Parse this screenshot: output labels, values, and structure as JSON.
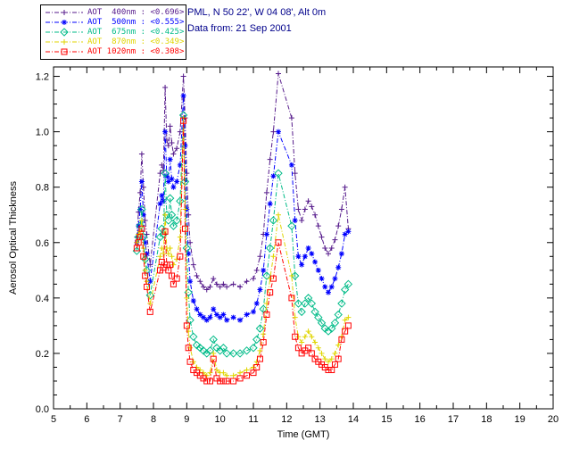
{
  "header": {
    "location_line": "PML, N 50 22', W 04 08', Alt 0m",
    "date_line": "Data from: 21 Sep 2001",
    "text_color": "#00008b"
  },
  "legend": {
    "items": [
      {
        "label": "AOT  400nm : <0.696>"
      },
      {
        "label": "AOT  500nm : <0.555>"
      },
      {
        "label": "AOT  675nm : <0.425>"
      },
      {
        "label": "AOT  870nm : <0.349>"
      },
      {
        "label": "AOT 1020nm : <0.308>"
      }
    ]
  },
  "chart_data": {
    "type": "line",
    "title": "",
    "xlabel": "Time (GMT)",
    "ylabel": "Aerosol Optical Thickness",
    "xlim": [
      5,
      20
    ],
    "ylim": [
      0,
      1.234
    ],
    "xticks": [
      5,
      6,
      7,
      8,
      9,
      10,
      11,
      12,
      13,
      14,
      15,
      16,
      17,
      18,
      19,
      20
    ],
    "yticks": [
      0.0,
      0.2,
      0.4,
      0.6,
      0.8,
      1.0,
      1.2
    ],
    "grid": false,
    "legend_position": "top-left",
    "x": [
      7.5,
      7.55,
      7.6,
      7.65,
      7.7,
      7.75,
      7.8,
      7.9,
      8.2,
      8.25,
      8.3,
      8.35,
      8.4,
      8.45,
      8.5,
      8.55,
      8.6,
      8.7,
      8.8,
      8.9,
      8.95,
      9.0,
      9.05,
      9.1,
      9.2,
      9.3,
      9.4,
      9.5,
      9.6,
      9.7,
      9.8,
      9.9,
      10.0,
      10.1,
      10.2,
      10.4,
      10.6,
      10.8,
      11.0,
      11.1,
      11.2,
      11.3,
      11.4,
      11.5,
      11.6,
      11.75,
      12.15,
      12.25,
      12.35,
      12.45,
      12.55,
      12.65,
      12.75,
      12.85,
      12.95,
      13.05,
      13.15,
      13.25,
      13.35,
      13.45,
      13.55,
      13.65,
      13.75,
      13.85
    ],
    "series": [
      {
        "name": "AOT 400nm",
        "mean": "<0.696>",
        "color": "#551a8b",
        "marker": "plus",
        "values": [
          0.62,
          0.71,
          0.78,
          0.92,
          0.8,
          0.68,
          0.63,
          0.52,
          0.85,
          0.88,
          0.86,
          1.16,
          0.97,
          0.95,
          1.02,
          0.96,
          0.92,
          0.94,
          1.0,
          1.2,
          1.05,
          0.85,
          0.7,
          0.6,
          0.52,
          0.48,
          0.46,
          0.44,
          0.43,
          0.44,
          0.47,
          0.45,
          0.44,
          0.45,
          0.44,
          0.45,
          0.44,
          0.46,
          0.47,
          0.5,
          0.55,
          0.63,
          0.78,
          0.9,
          1.0,
          1.21,
          1.05,
          0.85,
          0.72,
          0.68,
          0.72,
          0.75,
          0.73,
          0.7,
          0.66,
          0.62,
          0.58,
          0.56,
          0.58,
          0.61,
          0.66,
          0.72,
          0.8,
          0.65
        ]
      },
      {
        "name": "AOT 500nm",
        "mean": "<0.555>",
        "color": "#0000ff",
        "marker": "asterisk",
        "values": [
          0.6,
          0.66,
          0.72,
          0.82,
          0.7,
          0.6,
          0.56,
          0.46,
          0.74,
          0.77,
          0.75,
          1.0,
          0.84,
          0.82,
          0.9,
          0.83,
          0.8,
          0.82,
          0.88,
          1.13,
          0.95,
          0.72,
          0.56,
          0.46,
          0.39,
          0.36,
          0.34,
          0.33,
          0.32,
          0.33,
          0.36,
          0.34,
          0.33,
          0.34,
          0.32,
          0.33,
          0.32,
          0.34,
          0.35,
          0.38,
          0.43,
          0.5,
          0.63,
          0.74,
          0.84,
          1.0,
          0.88,
          0.68,
          0.55,
          0.52,
          0.55,
          0.58,
          0.56,
          0.53,
          0.5,
          0.47,
          0.44,
          0.42,
          0.44,
          0.47,
          0.51,
          0.56,
          0.63,
          0.64
        ]
      },
      {
        "name": "AOT 675nm",
        "mean": "<0.425>",
        "color": "#00bb88",
        "marker": "diamond",
        "values": [
          0.57,
          0.62,
          0.66,
          0.72,
          0.62,
          0.54,
          0.5,
          0.41,
          0.62,
          0.65,
          0.63,
          0.85,
          0.7,
          0.68,
          0.76,
          0.7,
          0.66,
          0.68,
          0.75,
          1.06,
          0.82,
          0.58,
          0.42,
          0.32,
          0.26,
          0.23,
          0.22,
          0.21,
          0.2,
          0.21,
          0.25,
          0.22,
          0.21,
          0.22,
          0.2,
          0.2,
          0.2,
          0.21,
          0.22,
          0.25,
          0.29,
          0.36,
          0.48,
          0.58,
          0.68,
          0.85,
          0.66,
          0.48,
          0.38,
          0.35,
          0.38,
          0.4,
          0.38,
          0.35,
          0.33,
          0.31,
          0.29,
          0.28,
          0.29,
          0.31,
          0.34,
          0.38,
          0.43,
          0.45
        ]
      },
      {
        "name": "AOT 870nm",
        "mean": "<0.349>",
        "color": "#e0d500",
        "marker": "plus",
        "values": [
          0.6,
          0.63,
          0.64,
          0.68,
          0.58,
          0.5,
          0.46,
          0.38,
          0.55,
          0.58,
          0.56,
          0.7,
          0.58,
          0.56,
          0.58,
          0.55,
          0.52,
          0.54,
          0.62,
          1.05,
          0.72,
          0.4,
          0.28,
          0.22,
          0.17,
          0.15,
          0.14,
          0.13,
          0.12,
          0.13,
          0.2,
          0.14,
          0.13,
          0.13,
          0.12,
          0.12,
          0.13,
          0.14,
          0.15,
          0.17,
          0.21,
          0.27,
          0.38,
          0.47,
          0.55,
          0.7,
          0.48,
          0.33,
          0.26,
          0.24,
          0.26,
          0.28,
          0.26,
          0.24,
          0.22,
          0.2,
          0.18,
          0.17,
          0.18,
          0.2,
          0.23,
          0.26,
          0.32,
          0.33
        ]
      },
      {
        "name": "AOT 1020nm",
        "mean": "<0.308>",
        "color": "#ff0000",
        "marker": "square",
        "values": [
          0.58,
          0.6,
          0.62,
          0.65,
          0.55,
          0.48,
          0.44,
          0.35,
          0.5,
          0.53,
          0.51,
          0.64,
          0.52,
          0.5,
          0.52,
          0.48,
          0.45,
          0.47,
          0.55,
          1.04,
          0.65,
          0.3,
          0.22,
          0.17,
          0.14,
          0.13,
          0.12,
          0.11,
          0.1,
          0.1,
          0.18,
          0.11,
          0.1,
          0.1,
          0.1,
          0.1,
          0.11,
          0.12,
          0.13,
          0.15,
          0.18,
          0.24,
          0.34,
          0.42,
          0.47,
          0.6,
          0.4,
          0.26,
          0.22,
          0.2,
          0.21,
          0.22,
          0.2,
          0.18,
          0.17,
          0.16,
          0.15,
          0.14,
          0.14,
          0.16,
          0.18,
          0.25,
          0.28,
          0.3
        ]
      }
    ]
  }
}
